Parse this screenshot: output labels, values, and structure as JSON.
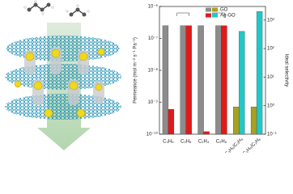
{
  "chart_data": {
    "type": "bar",
    "y_label": "Permeance (mol m⁻² s⁻¹ Pa⁻¹)",
    "y2_label": "Ideal selectivity",
    "categories": [
      "C₃H₆",
      "C₃H₈",
      "C₂H₄",
      "C₂H₆",
      "C₃H₆/C₃H₈",
      "C₂H₄/C₂H₆"
    ],
    "series": [
      {
        "name": "GO",
        "color": "#8c8c8c",
        "values": [
          2.5e-07,
          2.5e-07,
          2.5e-07,
          2.5e-07,
          null,
          null
        ]
      },
      {
        "name": "Ag-GO",
        "color": "#e01a1a",
        "values": [
          6e-10,
          2.5e-07,
          1.2e-10,
          2.5e-07,
          null,
          null
        ]
      },
      {
        "color": "#a8a020",
        "axis": "y2",
        "values": [
          null,
          null,
          null,
          null,
          0.9,
          0.9
        ]
      },
      {
        "color": "#20c8c8",
        "axis": "y2",
        "values": [
          null,
          null,
          null,
          null,
          400,
          2000
        ]
      }
    ],
    "ylim": [
      1e-10,
      1e-06
    ],
    "log_y": true,
    "yticks": [
      {
        "value": 1e-10,
        "label": "10⁻¹⁰"
      },
      {
        "value": 1e-09,
        "label": "10⁻⁹"
      },
      {
        "value": 1e-08,
        "label": "10⁻⁸"
      },
      {
        "value": 1e-07,
        "label": "10⁻⁷"
      },
      {
        "value": 1e-06,
        "label": "10⁻⁶"
      }
    ],
    "y2lim": [
      0.1,
      3000
    ],
    "y2ticks": [
      {
        "value": 0.1,
        "label": "10⁻¹"
      },
      {
        "value": 1,
        "label": "10⁰"
      },
      {
        "value": 10,
        "label": "10¹"
      },
      {
        "value": 100,
        "label": "10²"
      },
      {
        "value": 1000,
        "label": "10³"
      }
    ]
  }
}
